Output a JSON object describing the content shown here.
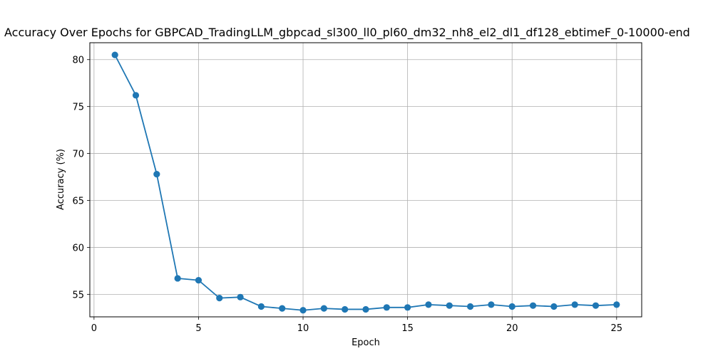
{
  "chart_data": {
    "type": "line",
    "title": "Accuracy Over Epochs for GBPCAD_TradingLLM_gbpcad_sl300_ll0_pl60_dm32_nh8_el2_dl1_df128_ebtimeF_0-10000-end",
    "xlabel": "Epoch",
    "ylabel": "Accuracy (%)",
    "xlim": [
      -0.2,
      26.2
    ],
    "ylim": [
      52.6,
      81.8
    ],
    "xticks": [
      0,
      5,
      10,
      15,
      20,
      25
    ],
    "yticks": [
      55,
      60,
      65,
      70,
      75,
      80
    ],
    "grid": true,
    "color": "#1f77b4",
    "x": [
      1,
      2,
      3,
      4,
      5,
      6,
      7,
      8,
      9,
      10,
      11,
      12,
      13,
      14,
      15,
      16,
      17,
      18,
      19,
      20,
      21,
      22,
      23,
      24,
      25
    ],
    "series": [
      {
        "values": [
          80.5,
          76.2,
          67.8,
          56.7,
          56.5,
          54.6,
          54.7,
          53.7,
          53.5,
          53.3,
          53.5,
          53.4,
          53.4,
          53.6,
          53.6,
          53.9,
          53.8,
          53.7,
          53.9,
          53.7,
          53.8,
          53.7,
          53.9,
          53.8,
          53.9
        ]
      }
    ]
  }
}
